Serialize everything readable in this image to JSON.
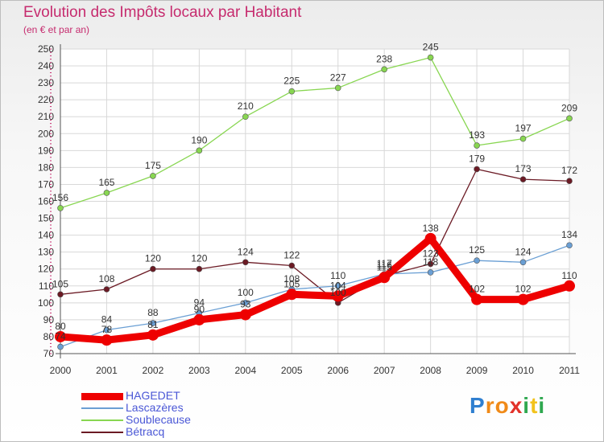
{
  "chart_data": {
    "type": "line",
    "title": "Evolution des Impôts locaux par Habitant",
    "subtitle": "(en € et par an)",
    "x": [
      "2000",
      "2001",
      "2002",
      "2003",
      "2004",
      "2005",
      "2006",
      "2007",
      "2008",
      "2009",
      "2010",
      "2011"
    ],
    "ylim": [
      70,
      250
    ],
    "yticks": [
      70,
      80,
      90,
      100,
      110,
      120,
      130,
      140,
      150,
      160,
      170,
      180,
      190,
      200,
      210,
      220,
      230,
      240,
      250
    ],
    "grid": true,
    "legend_position": "bottom-left",
    "series": [
      {
        "name": "HAGEDET",
        "color": "#ee0000",
        "values": [
          80,
          78,
          81,
          90,
          93,
          105,
          104,
          115,
          138,
          102,
          102,
          110
        ]
      },
      {
        "name": "Lascazères",
        "color": "#6a9fd4",
        "values": [
          74,
          84,
          88,
          94,
          100,
          108,
          110,
          117,
          118,
          125,
          124,
          134
        ]
      },
      {
        "name": "Soublecause",
        "color": "#88d651",
        "values": [
          156,
          165,
          175,
          190,
          210,
          225,
          227,
          238,
          245,
          193,
          197,
          209
        ]
      },
      {
        "name": "Bétracq",
        "color": "#6b1a24",
        "values": [
          105,
          108,
          120,
          120,
          124,
          122,
          100,
          116,
          123,
          179,
          173,
          172
        ]
      }
    ],
    "data_labels": [
      {
        "x": "2000",
        "text": "80"
      },
      {
        "x": "2000",
        "text": "74"
      },
      {
        "x": "2000",
        "text": "105"
      },
      {
        "x": "2000",
        "text": "156"
      },
      {
        "x": "2001",
        "text": "78"
      },
      {
        "x": "2001",
        "text": "84"
      },
      {
        "x": "2001",
        "text": "108"
      },
      {
        "x": "2001",
        "text": "165"
      },
      {
        "x": "2002",
        "text": "81"
      },
      {
        "x": "2002",
        "text": "88"
      },
      {
        "x": "2002",
        "text": "120"
      },
      {
        "x": "2002",
        "text": "175"
      },
      {
        "x": "2003",
        "text": "90"
      },
      {
        "x": "2003",
        "text": "94"
      },
      {
        "x": "2003",
        "text": "120"
      },
      {
        "x": "2003",
        "text": "190"
      },
      {
        "x": "2004",
        "text": "93"
      },
      {
        "x": "2004",
        "text": "100"
      },
      {
        "x": "2004",
        "text": "124"
      },
      {
        "x": "2004",
        "text": "210"
      },
      {
        "x": "2005",
        "text": "105"
      },
      {
        "x": "2005",
        "text": "108"
      },
      {
        "x": "2005",
        "text": "122"
      },
      {
        "x": "2005",
        "text": "225"
      },
      {
        "x": "2006",
        "text": "100"
      },
      {
        "x": "2006",
        "text": "104"
      },
      {
        "x": "2006",
        "text": "110"
      },
      {
        "x": "2006",
        "text": "227"
      },
      {
        "x": "2007",
        "text": "115"
      },
      {
        "x": "2007",
        "text": "116"
      },
      {
        "x": "2007",
        "text": "117"
      },
      {
        "x": "2007",
        "text": "238"
      },
      {
        "x": "2008",
        "text": "118"
      },
      {
        "x": "2008",
        "text": "123"
      },
      {
        "x": "2008",
        "text": "138"
      },
      {
        "x": "2008",
        "text": "245"
      },
      {
        "x": "2009",
        "text": "102"
      },
      {
        "x": "2009",
        "text": "125"
      },
      {
        "x": "2009",
        "text": "179"
      },
      {
        "x": "2009",
        "text": "193"
      },
      {
        "x": "2010",
        "text": "102"
      },
      {
        "x": "2010",
        "text": "124"
      },
      {
        "x": "2010",
        "text": "173"
      },
      {
        "x": "2010",
        "text": "197"
      },
      {
        "x": "2011",
        "text": "110"
      },
      {
        "x": "2011",
        "text": "134"
      },
      {
        "x": "2011",
        "text": "172"
      },
      {
        "x": "2011",
        "text": "209"
      }
    ]
  },
  "logo": {
    "letters": [
      "P",
      "r",
      "o",
      "x",
      "i",
      "t",
      "i"
    ],
    "colors": [
      "#2f7fd0",
      "#f08a18",
      "#f08a18",
      "#e2322a",
      "#2fa84f",
      "#f2c21b",
      "#2fa84f"
    ]
  }
}
